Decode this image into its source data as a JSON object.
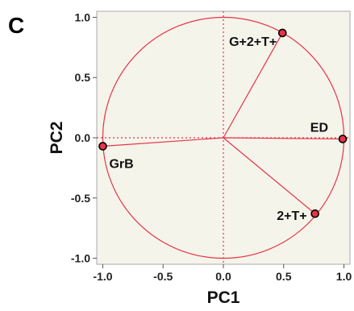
{
  "chart_data": {
    "type": "scatter",
    "subtype": "pca-loadings-with-correlation-circle",
    "panel_label": "C",
    "xlabel": "PC1",
    "ylabel": "PC2",
    "xlim": [
      -1.05,
      1.05
    ],
    "ylim": [
      -1.05,
      1.05
    ],
    "xticks": [
      "-1.0",
      "-0.5",
      "0.0",
      "0.5",
      "1.0"
    ],
    "yticks": [
      "1.0",
      "0.5",
      "0.0",
      "-0.5",
      "-1.0"
    ],
    "grid": false,
    "points": [
      {
        "label": "G+2+T+",
        "x": 0.49,
        "y": 0.87
      },
      {
        "label": "ED",
        "x": 0.99,
        "y": -0.01
      },
      {
        "label": "GrB",
        "x": -1.0,
        "y": -0.07
      },
      {
        "label": "2+T+",
        "x": 0.76,
        "y": -0.63
      }
    ],
    "colors": {
      "circle": "#e8334a",
      "vectors": "#e8334a",
      "marker_fill": "#e8334a",
      "marker_edge": "#000000",
      "plot_background": "#f4f4ea",
      "zero_lines": "#e8334a"
    }
  }
}
